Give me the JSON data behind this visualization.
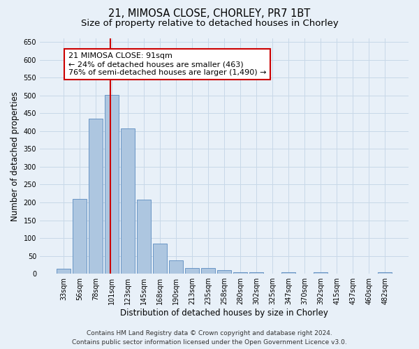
{
  "title_line1": "21, MIMOSA CLOSE, CHORLEY, PR7 1BT",
  "title_line2": "Size of property relative to detached houses in Chorley",
  "xlabel": "Distribution of detached houses by size in Chorley",
  "ylabel": "Number of detached properties",
  "categories": [
    "33sqm",
    "56sqm",
    "78sqm",
    "101sqm",
    "123sqm",
    "145sqm",
    "168sqm",
    "190sqm",
    "213sqm",
    "235sqm",
    "258sqm",
    "280sqm",
    "302sqm",
    "325sqm",
    "347sqm",
    "370sqm",
    "392sqm",
    "415sqm",
    "437sqm",
    "460sqm",
    "482sqm"
  ],
  "values": [
    15,
    210,
    435,
    502,
    407,
    207,
    85,
    38,
    17,
    17,
    11,
    5,
    5,
    0,
    5,
    0,
    5,
    0,
    0,
    0,
    5
  ],
  "bar_color": "#adc6e0",
  "bar_edge_color": "#5a8bbf",
  "grid_color": "#c8d8e8",
  "background_color": "#e8f0f8",
  "annotation_text_line1": "21 MIMOSA CLOSE: 91sqm",
  "annotation_text_line2": "← 24% of detached houses are smaller (463)",
  "annotation_text_line3": "76% of semi-detached houses are larger (1,490) →",
  "annotation_box_color": "#ffffff",
  "annotation_box_edge_color": "#cc0000",
  "red_line_color": "#cc0000",
  "ylim_max": 660,
  "ytick_step": 50,
  "footer_line1": "Contains HM Land Registry data © Crown copyright and database right 2024.",
  "footer_line2": "Contains public sector information licensed under the Open Government Licence v3.0.",
  "title_fontsize": 10.5,
  "subtitle_fontsize": 9.5,
  "axis_label_fontsize": 8.5,
  "tick_fontsize": 7,
  "annotation_fontsize": 8,
  "footer_fontsize": 6.5
}
